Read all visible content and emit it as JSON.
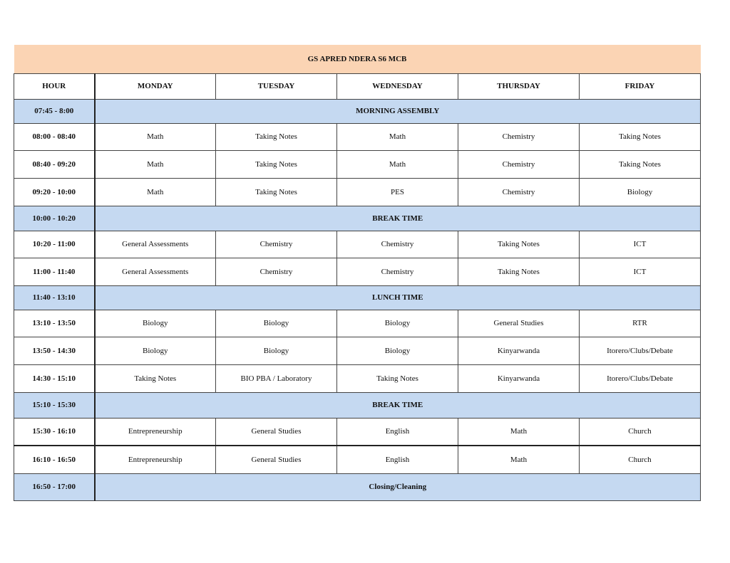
{
  "title": "GS APRED NDERA S6 MCB",
  "headers": [
    "HOUR",
    "MONDAY",
    "TUESDAY",
    "WEDNESDAY",
    "THURSDAY",
    "FRIDAY"
  ],
  "colors": {
    "title_bg": "#fbd4b4",
    "break_bg": "#c5d9f1"
  },
  "rows": [
    {
      "hour": "07:45 - 8:00",
      "span": "MORNING ASSEMBLY"
    },
    {
      "hour": "08:00 - 08:40",
      "cells": [
        "Math",
        "Taking Notes",
        "Math",
        "Chemistry",
        "Taking Notes"
      ]
    },
    {
      "hour": "08:40 - 09:20",
      "cells": [
        "Math",
        "Taking Notes",
        "Math",
        "Chemistry",
        "Taking Notes"
      ]
    },
    {
      "hour": "09:20 - 10:00",
      "cells": [
        "Math",
        "Taking Notes",
        "PES",
        "Chemistry",
        "Biology"
      ]
    },
    {
      "hour": "10:00 - 10:20",
      "span": "BREAK TIME"
    },
    {
      "hour": "10:20 - 11:00",
      "cells": [
        "General Assessments",
        "Chemistry",
        "Chemistry",
        "Taking Notes",
        "ICT"
      ]
    },
    {
      "hour": "11:00 - 11:40",
      "cells": [
        "General Assessments",
        "Chemistry",
        "Chemistry",
        "Taking Notes",
        "ICT"
      ]
    },
    {
      "hour": "11:40 - 13:10",
      "span": "LUNCH TIME"
    },
    {
      "hour": "13:10 - 13:50",
      "cells": [
        "Biology",
        "Biology",
        "Biology",
        "General Studies",
        "RTR"
      ]
    },
    {
      "hour": "13:50 - 14:30",
      "cells": [
        "Biology",
        "Biology",
        "Biology",
        "Kinyarwanda",
        "Itorero/Clubs/Debate"
      ]
    },
    {
      "hour": "14:30 - 15:10",
      "cells": [
        "Taking Notes",
        "BIO PBA / Laboratory",
        "Taking Notes",
        "Kinyarwanda",
        "Itorero/Clubs/Debate"
      ]
    },
    {
      "hour": "15:10 - 15:30",
      "span": "BREAK TIME"
    },
    {
      "hour": "15:30 - 16:10",
      "cells": [
        "Entrepreneurship",
        "General Studies",
        "English",
        "Math",
        "Church"
      ]
    },
    {
      "hour": "16:10 - 16:50",
      "cells": [
        "Entrepreneurship",
        "General Studies",
        "English",
        "Math",
        "Church"
      ]
    },
    {
      "hour": "16:50 - 17:00",
      "span": "Closing/Cleaning"
    }
  ]
}
